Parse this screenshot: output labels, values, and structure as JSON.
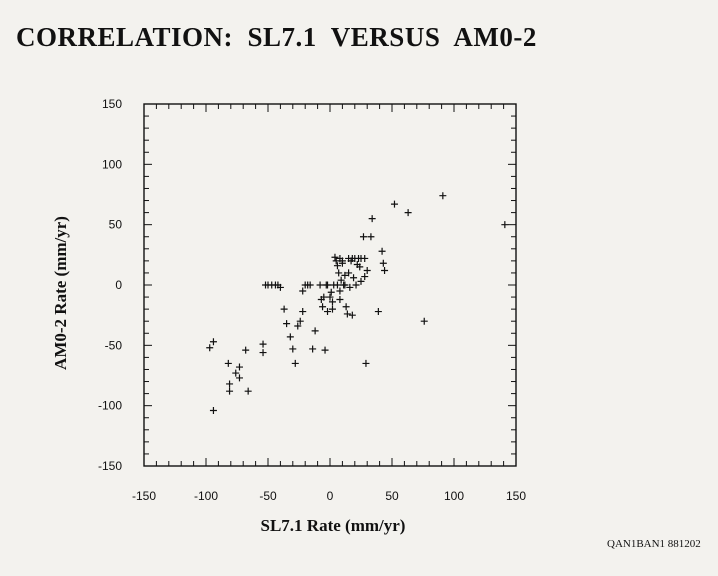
{
  "title": "CORRELATION:  SL7.1  VERSUS  AM0-2",
  "corner_label": "QAN1BAN1 881202",
  "chart_data": {
    "type": "scatter",
    "title": "CORRELATION:  SL7.1  VERSUS  AM0-2",
    "xlabel": "SL7.1  Rate  (mm/yr)",
    "ylabel": "AM0-2 Rate  (mm/yr)",
    "xlim": [
      -150,
      150
    ],
    "ylim": [
      -150,
      150
    ],
    "xticks": [
      -150,
      -100,
      -50,
      0,
      50,
      100,
      150
    ],
    "yticks": [
      -150,
      -100,
      -50,
      0,
      50,
      100,
      150
    ],
    "xtick_labels": [
      "-150",
      "-100",
      "-50",
      "0",
      "50",
      "100",
      "150"
    ],
    "ytick_labels": [
      "-150",
      "-100",
      "-50",
      "0",
      "50",
      "100",
      "150"
    ],
    "marker": "+",
    "grid": false,
    "points": [
      [
        -94,
        -104
      ],
      [
        -97,
        -52
      ],
      [
        -94,
        -47
      ],
      [
        -82,
        -65
      ],
      [
        -81,
        -82
      ],
      [
        -81,
        -88
      ],
      [
        -76,
        -73
      ],
      [
        -73,
        -68
      ],
      [
        -73,
        -77
      ],
      [
        -68,
        -54
      ],
      [
        -66,
        -88
      ],
      [
        -54,
        -56
      ],
      [
        -54,
        -49
      ],
      [
        -52,
        0
      ],
      [
        -50,
        0
      ],
      [
        -47,
        0
      ],
      [
        -44,
        0
      ],
      [
        -42,
        0
      ],
      [
        -40,
        -2
      ],
      [
        -37,
        -20
      ],
      [
        -35,
        -32
      ],
      [
        -32,
        -43
      ],
      [
        -30,
        -53
      ],
      [
        -28,
        -65
      ],
      [
        -26,
        -34
      ],
      [
        -24,
        -30
      ],
      [
        -22,
        -22
      ],
      [
        -22,
        -5
      ],
      [
        -20,
        0
      ],
      [
        -18,
        0
      ],
      [
        -16,
        0
      ],
      [
        -14,
        -53
      ],
      [
        -12,
        -38
      ],
      [
        -8,
        0
      ],
      [
        -7,
        -12
      ],
      [
        -6,
        -18
      ],
      [
        -5,
        -10
      ],
      [
        -4,
        -54
      ],
      [
        -3,
        0
      ],
      [
        -2,
        0
      ],
      [
        -2,
        -22
      ],
      [
        0,
        -10
      ],
      [
        1,
        -6
      ],
      [
        2,
        -14
      ],
      [
        2,
        -20
      ],
      [
        3,
        0
      ],
      [
        4,
        23
      ],
      [
        5,
        20
      ],
      [
        6,
        0
      ],
      [
        6,
        16
      ],
      [
        7,
        10
      ],
      [
        8,
        -5
      ],
      [
        8,
        -12
      ],
      [
        8,
        22
      ],
      [
        9,
        4
      ],
      [
        10,
        18
      ],
      [
        10,
        20
      ],
      [
        11,
        0
      ],
      [
        12,
        0
      ],
      [
        12,
        8
      ],
      [
        13,
        -18
      ],
      [
        14,
        -24
      ],
      [
        15,
        22
      ],
      [
        15,
        10
      ],
      [
        16,
        -2
      ],
      [
        17,
        20
      ],
      [
        18,
        -25
      ],
      [
        18,
        22
      ],
      [
        19,
        6
      ],
      [
        20,
        22
      ],
      [
        21,
        0
      ],
      [
        22,
        17
      ],
      [
        23,
        22
      ],
      [
        24,
        15
      ],
      [
        25,
        22
      ],
      [
        25,
        3
      ],
      [
        27,
        40
      ],
      [
        28,
        7
      ],
      [
        28,
        22
      ],
      [
        29,
        -65
      ],
      [
        30,
        12
      ],
      [
        33,
        40
      ],
      [
        34,
        55
      ],
      [
        39,
        -22
      ],
      [
        42,
        28
      ],
      [
        43,
        18
      ],
      [
        44,
        12
      ],
      [
        52,
        67
      ],
      [
        63,
        60
      ],
      [
        76,
        -30
      ],
      [
        91,
        74
      ],
      [
        141,
        50
      ]
    ]
  }
}
